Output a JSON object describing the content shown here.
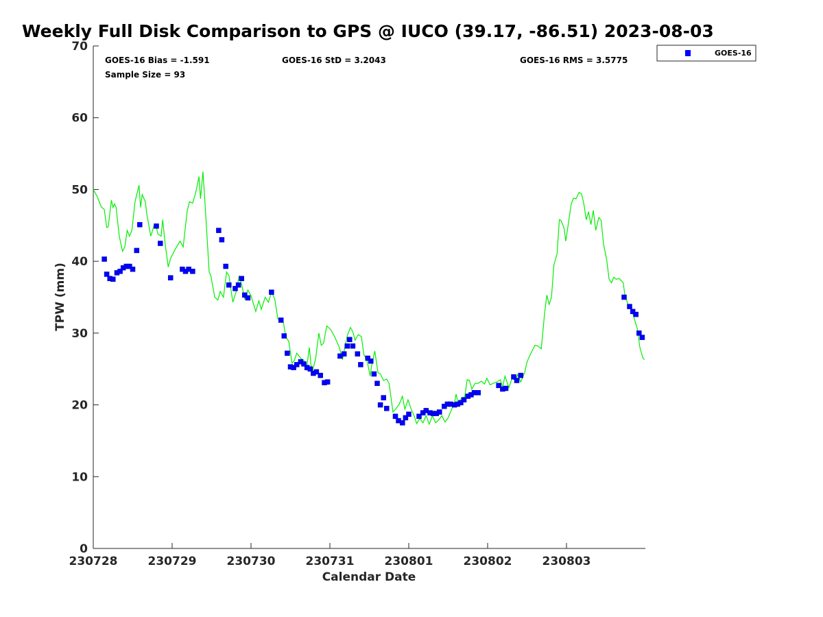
{
  "chart_data": {
    "type": "scatter",
    "title": "Weekly Full Disk Comparison to GPS @ IUCO (39.17, -86.51) 2023-08-03",
    "xlabel": "Calendar Date",
    "ylabel": "TPW (mm)",
    "xlim": [
      0,
      7.0
    ],
    "ylim": [
      0,
      70
    ],
    "x_unit": "days since 230728",
    "yticks": [
      0,
      10,
      20,
      30,
      40,
      50,
      60,
      70
    ],
    "xtick_values": [
      0,
      1,
      2,
      3,
      4,
      5,
      6
    ],
    "xtick_labels": [
      "230728",
      "230729",
      "230730",
      "230731",
      "230801",
      "230802",
      "230803"
    ],
    "grid": false,
    "legend_position": "top-right",
    "stats": {
      "bias": "GOES-16 Bias = -1.591",
      "std": "GOES-16 StD = 3.2043",
      "rms": "GOES-16 RMS = 3.5775",
      "sample": "Sample Size = 93"
    },
    "series": [
      {
        "name": "GOES-16",
        "kind": "points",
        "color": "#0000ff",
        "points": [
          [
            0.14,
            40.3
          ],
          [
            0.17,
            38.2
          ],
          [
            0.21,
            37.6
          ],
          [
            0.25,
            37.5
          ],
          [
            0.3,
            38.4
          ],
          [
            0.34,
            38.6
          ],
          [
            0.38,
            39.1
          ],
          [
            0.42,
            39.3
          ],
          [
            0.46,
            39.3
          ],
          [
            0.5,
            38.9
          ],
          [
            0.55,
            41.5
          ],
          [
            0.59,
            45.1
          ],
          [
            0.8,
            44.9
          ],
          [
            0.85,
            42.5
          ],
          [
            0.98,
            37.7
          ],
          [
            1.13,
            38.9
          ],
          [
            1.17,
            38.6
          ],
          [
            1.21,
            38.9
          ],
          [
            1.26,
            38.6
          ],
          [
            1.59,
            44.3
          ],
          [
            1.63,
            43.0
          ],
          [
            1.68,
            39.3
          ],
          [
            1.72,
            36.7
          ],
          [
            1.8,
            36.2
          ],
          [
            1.84,
            36.7
          ],
          [
            1.88,
            37.6
          ],
          [
            1.92,
            35.3
          ],
          [
            1.96,
            34.9
          ],
          [
            2.26,
            35.7
          ],
          [
            2.38,
            31.8
          ],
          [
            2.42,
            29.6
          ],
          [
            2.46,
            27.2
          ],
          [
            2.5,
            25.3
          ],
          [
            2.54,
            25.2
          ],
          [
            2.58,
            25.6
          ],
          [
            2.63,
            26.0
          ],
          [
            2.67,
            25.7
          ],
          [
            2.71,
            25.2
          ],
          [
            2.75,
            25.0
          ],
          [
            2.79,
            24.4
          ],
          [
            2.83,
            24.6
          ],
          [
            2.88,
            24.1
          ],
          [
            2.93,
            23.1
          ],
          [
            2.97,
            23.2
          ],
          [
            3.13,
            26.8
          ],
          [
            3.18,
            27.1
          ],
          [
            3.22,
            28.2
          ],
          [
            3.25,
            29.1
          ],
          [
            3.29,
            28.2
          ],
          [
            3.35,
            27.1
          ],
          [
            3.39,
            25.6
          ],
          [
            3.48,
            26.5
          ],
          [
            3.52,
            26.1
          ],
          [
            3.56,
            24.3
          ],
          [
            3.6,
            23.0
          ],
          [
            3.64,
            20.0
          ],
          [
            3.68,
            21.0
          ],
          [
            3.72,
            19.5
          ],
          [
            3.83,
            18.4
          ],
          [
            3.87,
            17.8
          ],
          [
            3.92,
            17.5
          ],
          [
            3.96,
            18.2
          ],
          [
            4.0,
            18.7
          ],
          [
            4.13,
            18.4
          ],
          [
            4.18,
            18.9
          ],
          [
            4.22,
            19.2
          ],
          [
            4.27,
            18.9
          ],
          [
            4.31,
            18.8
          ],
          [
            4.35,
            18.8
          ],
          [
            4.39,
            19.0
          ],
          [
            4.45,
            19.8
          ],
          [
            4.49,
            20.1
          ],
          [
            4.53,
            20.1
          ],
          [
            4.58,
            20.0
          ],
          [
            4.62,
            20.1
          ],
          [
            4.66,
            20.3
          ],
          [
            4.7,
            20.7
          ],
          [
            4.75,
            21.2
          ],
          [
            4.79,
            21.4
          ],
          [
            4.83,
            21.7
          ],
          [
            4.88,
            21.7
          ],
          [
            5.14,
            22.7
          ],
          [
            5.19,
            22.2
          ],
          [
            5.23,
            22.3
          ],
          [
            5.33,
            23.9
          ],
          [
            5.37,
            23.4
          ],
          [
            5.42,
            24.1
          ],
          [
            6.73,
            35.0
          ],
          [
            6.8,
            33.7
          ],
          [
            6.84,
            33.0
          ],
          [
            6.88,
            32.6
          ],
          [
            6.92,
            30.0
          ],
          [
            6.96,
            29.4
          ]
        ]
      },
      {
        "name": "",
        "kind": "line",
        "color": "#00ee00",
        "points": [
          [
            0.0,
            50.0
          ],
          [
            0.05,
            49.0
          ],
          [
            0.1,
            47.6
          ],
          [
            0.14,
            47.2
          ],
          [
            0.17,
            44.7
          ],
          [
            0.19,
            44.8
          ],
          [
            0.23,
            48.5
          ],
          [
            0.25,
            47.5
          ],
          [
            0.27,
            48.0
          ],
          [
            0.29,
            47.5
          ],
          [
            0.33,
            43.5
          ],
          [
            0.37,
            41.4
          ],
          [
            0.4,
            42.0
          ],
          [
            0.43,
            44.3
          ],
          [
            0.46,
            43.5
          ],
          [
            0.49,
            44.3
          ],
          [
            0.53,
            48.3
          ],
          [
            0.58,
            50.6
          ],
          [
            0.6,
            47.5
          ],
          [
            0.62,
            49.3
          ],
          [
            0.66,
            48.3
          ],
          [
            0.68,
            46.5
          ],
          [
            0.73,
            43.5
          ],
          [
            0.77,
            45.0
          ],
          [
            0.79,
            45.2
          ],
          [
            0.82,
            43.8
          ],
          [
            0.86,
            43.5
          ],
          [
            0.88,
            45.8
          ],
          [
            0.91,
            42.5
          ],
          [
            0.95,
            39.2
          ],
          [
            0.98,
            40.4
          ],
          [
            1.04,
            41.7
          ],
          [
            1.1,
            42.8
          ],
          [
            1.14,
            42.0
          ],
          [
            1.19,
            47.0
          ],
          [
            1.22,
            48.3
          ],
          [
            1.26,
            48.1
          ],
          [
            1.3,
            49.6
          ],
          [
            1.34,
            51.8
          ],
          [
            1.36,
            48.7
          ],
          [
            1.39,
            52.5
          ],
          [
            1.42,
            47.5
          ],
          [
            1.47,
            38.5
          ],
          [
            1.49,
            38.0
          ],
          [
            1.54,
            35.0
          ],
          [
            1.58,
            34.6
          ],
          [
            1.61,
            35.8
          ],
          [
            1.65,
            35.0
          ],
          [
            1.69,
            38.5
          ],
          [
            1.72,
            38.0
          ],
          [
            1.77,
            34.3
          ],
          [
            1.81,
            35.7
          ],
          [
            1.85,
            38.0
          ],
          [
            1.88,
            36.8
          ],
          [
            1.92,
            34.8
          ],
          [
            1.96,
            36.0
          ],
          [
            2.0,
            35.2
          ],
          [
            2.06,
            33.0
          ],
          [
            2.1,
            34.5
          ],
          [
            2.13,
            33.3
          ],
          [
            2.18,
            35.0
          ],
          [
            2.22,
            34.3
          ],
          [
            2.26,
            35.7
          ],
          [
            2.3,
            34.8
          ],
          [
            2.34,
            32.0
          ],
          [
            2.37,
            31.7
          ],
          [
            2.41,
            31.5
          ],
          [
            2.44,
            29.5
          ],
          [
            2.48,
            28.8
          ],
          [
            2.52,
            25.8
          ],
          [
            2.55,
            26.2
          ],
          [
            2.58,
            27.2
          ],
          [
            2.63,
            26.5
          ],
          [
            2.67,
            26.2
          ],
          [
            2.7,
            24.8
          ],
          [
            2.74,
            28.0
          ],
          [
            2.77,
            24.3
          ],
          [
            2.82,
            26.5
          ],
          [
            2.86,
            30.0
          ],
          [
            2.89,
            28.3
          ],
          [
            2.92,
            28.6
          ],
          [
            2.96,
            31.0
          ],
          [
            3.01,
            30.5
          ],
          [
            3.06,
            29.5
          ],
          [
            3.12,
            28.0
          ],
          [
            3.16,
            26.3
          ],
          [
            3.19,
            28.0
          ],
          [
            3.22,
            29.6
          ],
          [
            3.26,
            30.8
          ],
          [
            3.29,
            30.2
          ],
          [
            3.32,
            29.0
          ],
          [
            3.36,
            29.8
          ],
          [
            3.4,
            29.5
          ],
          [
            3.43,
            27.0
          ],
          [
            3.47,
            26.3
          ],
          [
            3.51,
            24.0
          ],
          [
            3.53,
            25.5
          ],
          [
            3.57,
            27.5
          ],
          [
            3.61,
            24.5
          ],
          [
            3.64,
            24.3
          ],
          [
            3.68,
            23.4
          ],
          [
            3.72,
            23.6
          ],
          [
            3.75,
            23.0
          ],
          [
            3.8,
            19.0
          ],
          [
            3.84,
            19.5
          ],
          [
            3.88,
            20.1
          ],
          [
            3.92,
            21.2
          ],
          [
            3.95,
            19.4
          ],
          [
            3.99,
            20.7
          ],
          [
            4.03,
            19.4
          ],
          [
            4.07,
            18.4
          ],
          [
            4.1,
            17.4
          ],
          [
            4.14,
            18.1
          ],
          [
            4.18,
            17.5
          ],
          [
            4.22,
            18.5
          ],
          [
            4.26,
            17.3
          ],
          [
            4.3,
            18.5
          ],
          [
            4.34,
            17.5
          ],
          [
            4.38,
            17.9
          ],
          [
            4.42,
            18.5
          ],
          [
            4.46,
            17.6
          ],
          [
            4.5,
            18.2
          ],
          [
            4.54,
            19.3
          ],
          [
            4.58,
            20.3
          ],
          [
            4.6,
            21.5
          ],
          [
            4.63,
            20.0
          ],
          [
            4.67,
            21.0
          ],
          [
            4.71,
            21.1
          ],
          [
            4.74,
            23.5
          ],
          [
            4.77,
            23.4
          ],
          [
            4.8,
            22.2
          ],
          [
            4.84,
            23.0
          ],
          [
            4.88,
            23.0
          ],
          [
            4.92,
            23.3
          ],
          [
            4.96,
            22.9
          ],
          [
            4.99,
            23.7
          ],
          [
            5.03,
            22.8
          ],
          [
            5.07,
            23.0
          ],
          [
            5.12,
            23.2
          ],
          [
            5.16,
            23.5
          ],
          [
            5.19,
            22.5
          ],
          [
            5.22,
            24.0
          ],
          [
            5.27,
            22.4
          ],
          [
            5.31,
            23.7
          ],
          [
            5.35,
            23.4
          ],
          [
            5.38,
            24.2
          ],
          [
            5.42,
            23.2
          ],
          [
            5.47,
            24.5
          ],
          [
            5.5,
            26.0
          ],
          [
            5.54,
            27.0
          ],
          [
            5.6,
            28.3
          ],
          [
            5.64,
            28.2
          ],
          [
            5.68,
            27.8
          ],
          [
            5.72,
            32.5
          ],
          [
            5.75,
            35.3
          ],
          [
            5.78,
            34.0
          ],
          [
            5.81,
            35.0
          ],
          [
            5.84,
            39.5
          ],
          [
            5.88,
            41.0
          ],
          [
            5.91,
            45.8
          ],
          [
            5.93,
            45.7
          ],
          [
            5.97,
            44.6
          ],
          [
            5.99,
            42.8
          ],
          [
            6.02,
            45.0
          ],
          [
            6.06,
            48.0
          ],
          [
            6.09,
            48.8
          ],
          [
            6.12,
            48.7
          ],
          [
            6.16,
            49.6
          ],
          [
            6.19,
            49.4
          ],
          [
            6.22,
            48.0
          ],
          [
            6.25,
            45.8
          ],
          [
            6.28,
            46.9
          ],
          [
            6.31,
            45.1
          ],
          [
            6.34,
            47.1
          ],
          [
            6.37,
            44.3
          ],
          [
            6.41,
            46.1
          ],
          [
            6.44,
            45.7
          ],
          [
            6.47,
            42.4
          ],
          [
            6.51,
            40.2
          ],
          [
            6.54,
            37.5
          ],
          [
            6.57,
            37.0
          ],
          [
            6.6,
            37.8
          ],
          [
            6.63,
            37.5
          ],
          [
            6.67,
            37.6
          ],
          [
            6.72,
            37.0
          ],
          [
            6.74,
            35.3
          ],
          [
            6.78,
            34.0
          ],
          [
            6.82,
            33.5
          ],
          [
            6.86,
            32.0
          ],
          [
            6.9,
            30.5
          ],
          [
            6.93,
            28.0
          ],
          [
            6.97,
            26.5
          ],
          [
            6.99,
            26.3
          ]
        ]
      }
    ]
  }
}
